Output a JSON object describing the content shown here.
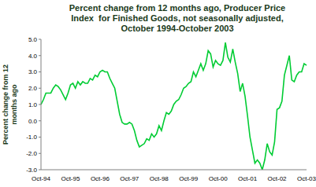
{
  "chart_data": {
    "type": "line",
    "title": "Percent change from 12 months ago, Producer Price Index  for Finished Goods, not seasonally adjusted, October 1994-October 2003",
    "y_label": "Percent change from 12 months ago",
    "categories": [
      "Oct-94",
      null,
      null,
      null,
      null,
      null,
      null,
      null,
      null,
      null,
      null,
      null,
      "Oct-95",
      null,
      null,
      null,
      null,
      null,
      null,
      null,
      null,
      null,
      null,
      null,
      "Oct-96",
      null,
      null,
      null,
      null,
      null,
      null,
      null,
      null,
      null,
      null,
      null,
      "Oct-97",
      null,
      null,
      null,
      null,
      null,
      null,
      null,
      null,
      null,
      null,
      null,
      "Oct-98",
      null,
      null,
      null,
      null,
      null,
      null,
      null,
      null,
      null,
      null,
      null,
      "Oct-99",
      null,
      null,
      null,
      null,
      null,
      null,
      null,
      null,
      null,
      null,
      null,
      "Oct-00",
      null,
      null,
      null,
      null,
      null,
      null,
      null,
      null,
      null,
      null,
      null,
      "Oct-01",
      null,
      null,
      null,
      null,
      null,
      null,
      null,
      null,
      null,
      null,
      null,
      "Oct-02",
      null,
      null,
      null,
      null,
      null,
      null,
      null,
      null,
      null,
      null,
      null,
      "Oct-03"
    ],
    "values": [
      1.0,
      1.3,
      1.7,
      1.7,
      1.7,
      2.0,
      2.2,
      2.1,
      1.9,
      1.6,
      1.3,
      1.7,
      2.2,
      2.3,
      2.0,
      2.4,
      2.2,
      2.4,
      2.3,
      2.3,
      2.6,
      2.5,
      2.8,
      2.7,
      3.0,
      3.1,
      3.0,
      3.0,
      2.6,
      2.3,
      2.0,
      1.2,
      0.4,
      -0.1,
      -0.2,
      -0.2,
      -0.1,
      -0.2,
      -0.6,
      -1.2,
      -1.6,
      -1.5,
      -1.4,
      -1.1,
      -1.2,
      -0.8,
      -1.0,
      -0.8,
      -0.3,
      -0.6,
      0.0,
      0.5,
      0.4,
      0.6,
      1.0,
      1.2,
      1.3,
      1.6,
      2.0,
      2.1,
      2.3,
      2.4,
      3.0,
      2.7,
      3.1,
      3.5,
      3.1,
      3.5,
      4.3,
      4.1,
      3.3,
      3.7,
      3.5,
      3.4,
      3.7,
      4.8,
      3.9,
      3.6,
      4.4,
      3.6,
      2.9,
      1.8,
      2.3,
      1.5,
      0.3,
      -1.0,
      -1.8,
      -2.6,
      -2.4,
      -2.6,
      -3.0,
      -2.4,
      -1.4,
      -1.9,
      -2.1,
      -1.3,
      0.7,
      0.8,
      1.2,
      2.8,
      3.4,
      4.0,
      2.5,
      2.4,
      2.8,
      3.0,
      3.0,
      3.5,
      3.4
    ],
    "color": "#00cc33",
    "ylim": [
      -3,
      5
    ],
    "yticks": [
      {
        "value": -3,
        "label": "-3.0"
      },
      {
        "value": -2,
        "label": "-2.0"
      },
      {
        "value": -1,
        "label": "-1.0"
      },
      {
        "value": 0,
        "label": "0.0"
      },
      {
        "value": 1,
        "label": "1.0"
      },
      {
        "value": 2,
        "label": "2.0"
      },
      {
        "value": 3,
        "label": "3.0"
      },
      {
        "value": 4,
        "label": "4.0"
      },
      {
        "value": 5,
        "label": "5.0"
      }
    ],
    "grid": false
  }
}
